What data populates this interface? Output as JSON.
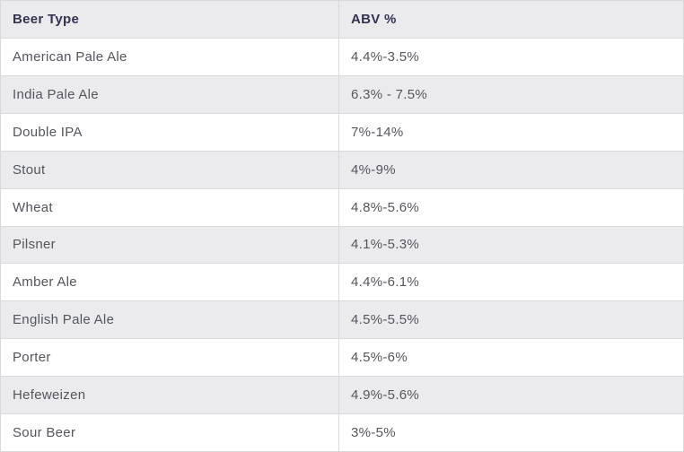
{
  "table": {
    "columns": {
      "type": "Beer Type",
      "abv": "ABV %"
    },
    "rows": [
      {
        "type": "American Pale Ale",
        "abv": "4.4%-3.5%"
      },
      {
        "type": "India Pale Ale",
        "abv": "6.3% - 7.5%"
      },
      {
        "type": "Double IPA",
        "abv": "7%-14%"
      },
      {
        "type": "Stout",
        "abv": "4%-9%"
      },
      {
        "type": "Wheat",
        "abv": "4.8%-5.6%"
      },
      {
        "type": "Pilsner",
        "abv": "4.1%-5.3%"
      },
      {
        "type": "Amber Ale",
        "abv": "4.4%-6.1%"
      },
      {
        "type": "English Pale Ale",
        "abv": "4.5%-5.5%"
      },
      {
        "type": "Porter",
        "abv": "4.5%-6%"
      },
      {
        "type": "Hefeweizen",
        "abv": "4.9%-5.6%"
      },
      {
        "type": "Sour Beer",
        "abv": "3%-5%"
      }
    ],
    "colors": {
      "header_text": "#333351",
      "cell_text": "#54565e",
      "stripe_bg": "#ebebee",
      "row_bg": "#ffffff",
      "border": "#d9d9dc"
    }
  }
}
